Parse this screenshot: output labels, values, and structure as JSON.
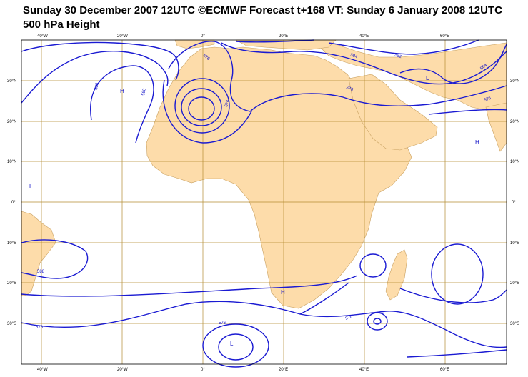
{
  "title_line1": "Sunday 30 December 2007 12UTC ©ECMWF Forecast t+168 VT: Sunday 6 January 2008 12UTC",
  "title_line2": "500 hPa Height",
  "colors": {
    "land": "#fddcaa",
    "contour": "#1a1ad2",
    "grid": "#b48c32",
    "coast": "#c8a060"
  },
  "lon_labels": [
    "40°W",
    "20°W",
    "0°",
    "20°E",
    "40°E",
    "60°E"
  ],
  "lat_labels_left": [
    "30°N",
    "20°N",
    "10°N",
    "0°",
    "10°S",
    "20°S",
    "30°S"
  ],
  "lat_labels_right": [
    "30°N",
    "20°N",
    "10°N",
    "0°",
    "10°S",
    "20°S",
    "30°S"
  ],
  "contour_labels": {
    "c588_nw": "588",
    "c588_nw2": "588",
    "c576_sahara": "576",
    "c576_nafr": "576",
    "c576_med": "576",
    "c584_top": "584",
    "c552_top": "552",
    "c576_east": "576",
    "c564_east": "564",
    "c588_sw": "588",
    "c576_s1": "576",
    "c576_s2": "576",
    "c576_s3": "576"
  },
  "pressure_centers": {
    "h_atlantic": "H",
    "l_atlantic": "L",
    "h_safrica": "H",
    "l_south": "L",
    "h_arabian": "H",
    "l_iran": "L"
  }
}
